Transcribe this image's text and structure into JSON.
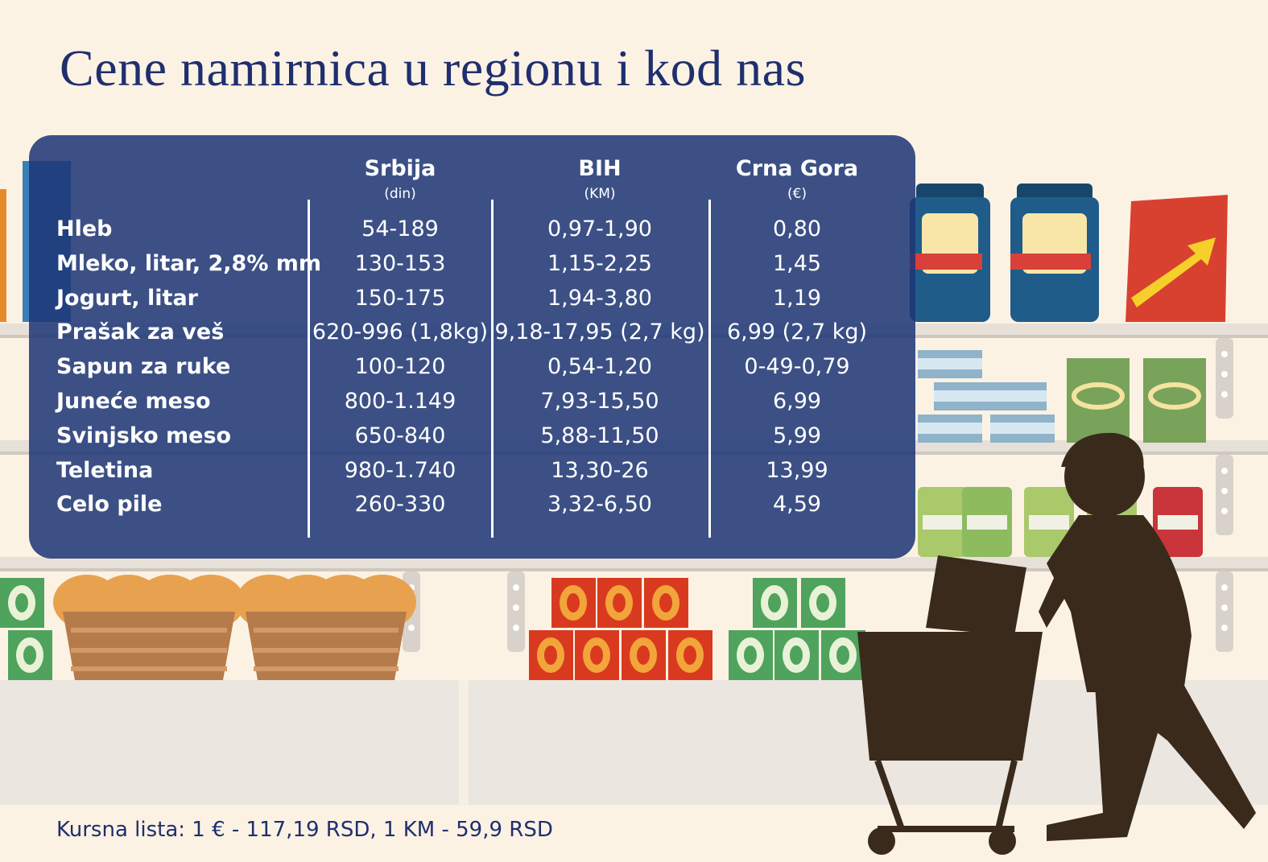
{
  "title": "Cene namirnica u regionu i kod nas",
  "table": {
    "columns": [
      {
        "name": "Srbija",
        "unit": "(din)"
      },
      {
        "name": "BIH",
        "unit": "(KM)"
      },
      {
        "name": "Crna Gora",
        "unit": "(€)"
      }
    ],
    "rows": [
      [
        "Hleb",
        "54-189",
        "0,97-1,90",
        "0,80"
      ],
      [
        "Mleko, litar, 2,8% mm",
        "130-153",
        "1,15-2,25",
        "1,45"
      ],
      [
        "Jogurt, litar",
        "150-175",
        "1,94-3,80",
        "1,19"
      ],
      [
        "Prašak za veš",
        "620-996 (1,8kg)",
        "9,18-17,95 (2,7 kg)",
        "6,99 (2,7 kg)"
      ],
      [
        "Sapun za ruke",
        "100-120",
        "0,54-1,20",
        "0-49-0,79"
      ],
      [
        "Juneće meso",
        "800-1.149",
        "7,93-15,50",
        "6,99"
      ],
      [
        "Svinjsko meso",
        "650-840",
        "5,88-11,50",
        "5,99"
      ],
      [
        "Teletina",
        "980-1.740",
        "13,30-26",
        "13,99"
      ],
      [
        "Celo pile",
        "260-330",
        "3,32-6,50",
        "4,59"
      ]
    ]
  },
  "footer": "Kursna lista: 1 € - 117,19 RSD, 1 KM - 59,9 RSD"
}
